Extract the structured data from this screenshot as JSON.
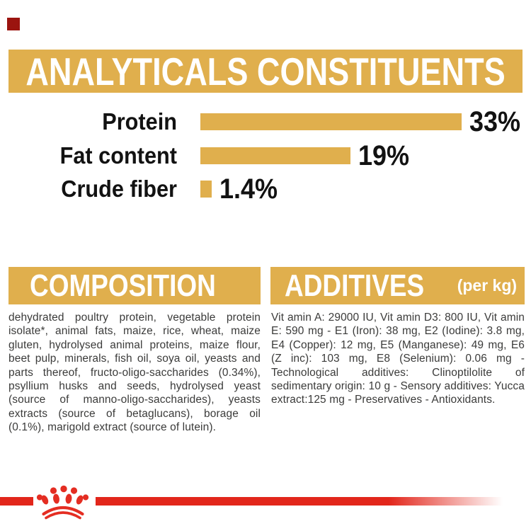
{
  "colors": {
    "gold": "#E0AF4D",
    "red": "#E2261B",
    "dark_red": "#9B140F",
    "heading_text": "#FFFFFF",
    "label_text": "#121212",
    "body_text": "#3B3B3A"
  },
  "banner": {
    "title": "ANALYTICALS CONSTITUENTS"
  },
  "chart_data": {
    "type": "bar",
    "orientation": "horizontal",
    "title": "ANALYTICALS CONSTITUENTS",
    "categories": [
      "Protein",
      "Fat content",
      "Crude fiber"
    ],
    "values": [
      33,
      19,
      1.4
    ],
    "value_labels": [
      "33%",
      "19%",
      "1.4%"
    ],
    "xlim": [
      0,
      33
    ],
    "bar_color": "#E0AF4D",
    "grid": false,
    "legend": false
  },
  "sections": {
    "composition": {
      "title": "COMPOSITION",
      "body": "dehydrated poultry protein, vegetable protein isolate*, animal fats, maize, rice, wheat, maize gluten, hydrolysed animal proteins, maize flour, beet pulp, minerals, fish oil, soya oil, yeasts and parts thereof, fructo-oligo-saccharides (0.34%), psyllium husks and seeds, hydrolysed yeast (source of manno-oligo-saccharides), yeasts extracts (source of betaglucans), borage oil (0.1%), marigold extract (source of lutein)."
    },
    "additives": {
      "title": "ADDITIVES",
      "title_suffix": "(per kg)",
      "body": "Vit amin A: 29000 IU, Vit amin D3: 800 IU, Vit amin E: 590 mg - E1 (Iron): 38 mg, E2 (Iodine): 3.8 mg, E4 (Copper): 12 mg, E5 (Manganese): 49 mg, E6 (Z inc): 103 mg, E8 (Selenium): 0.06 mg - Technological additives: Clinoptilolite of sedimentary origin: 10 g - Sensory additives: Yucca extract:125 mg - Preservatives - Antioxidants."
    }
  },
  "footer": {
    "logo": "royal-canin-crown-paw"
  }
}
